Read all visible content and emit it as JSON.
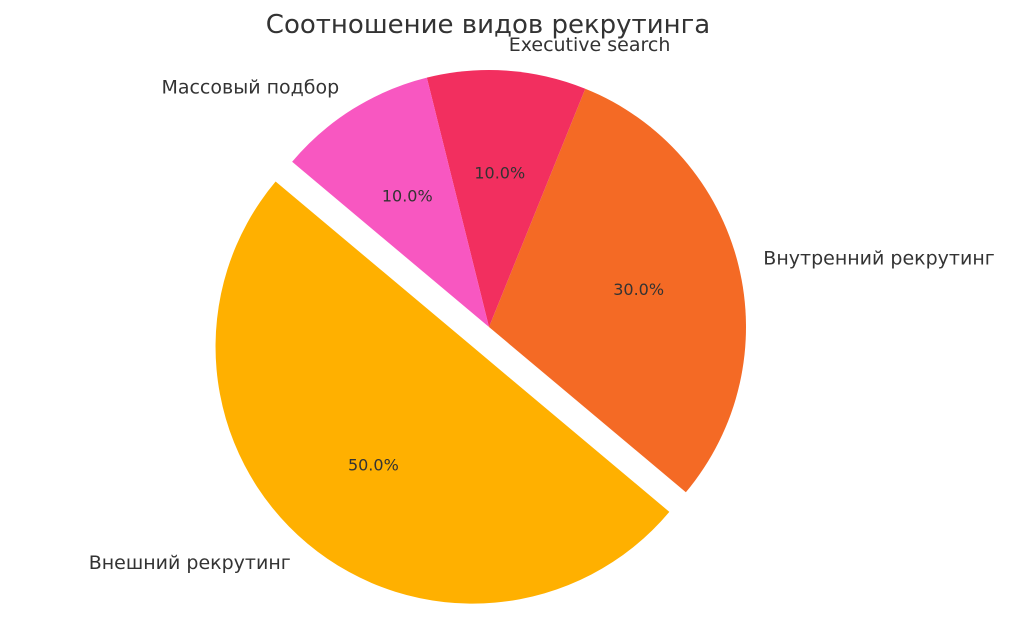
{
  "chart_data": {
    "type": "pie",
    "title": "Соотношение видов рекрутинга",
    "slices": [
      {
        "label": "Внешний рекрутинг",
        "value": 50,
        "percent_label": "50.0%",
        "color": "#FFB000",
        "exploded": true
      },
      {
        "label": "Внутренний рекрутинг",
        "value": 30,
        "percent_label": "30.0%",
        "color": "#F46A25",
        "exploded": false
      },
      {
        "label": "Executive search",
        "value": 10,
        "percent_label": "10.0%",
        "color": "#F22F5F",
        "exploded": false
      },
      {
        "label": "Массовый подбор",
        "value": 10,
        "percent_label": "10.0%",
        "color": "#F857C1",
        "exploded": false
      }
    ],
    "start_angle_deg": 140,
    "direction": "counterclockwise",
    "legend": "none"
  }
}
